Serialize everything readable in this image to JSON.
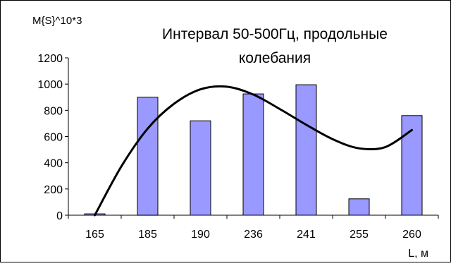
{
  "chart_data": {
    "type": "bar",
    "title_lines": [
      "Интервал 50-500Гц, продольные",
      "колебания"
    ],
    "ylabel": "M{S}^10*3",
    "xlabel": "L, м",
    "categories": [
      "165",
      "185",
      "190",
      "236",
      "241",
      "255",
      "260"
    ],
    "values": [
      10,
      900,
      720,
      925,
      995,
      125,
      760
    ],
    "ylim": [
      0,
      1200
    ],
    "yticks": [
      "0",
      "200",
      "400",
      "600",
      "800",
      "1000",
      "1200"
    ],
    "grid": false,
    "legend": "none",
    "bar_color": "#9999ff",
    "bar_stroke": "#000000",
    "trend": {
      "type": "polynomial",
      "x": [
        1,
        1.5,
        2,
        2.5,
        3,
        3.5,
        4,
        4.5,
        5,
        5.5,
        6,
        6.5,
        7
      ],
      "y": [
        0,
        370,
        660,
        850,
        960,
        980,
        920,
        810,
        690,
        580,
        510,
        520,
        650
      ]
    }
  }
}
